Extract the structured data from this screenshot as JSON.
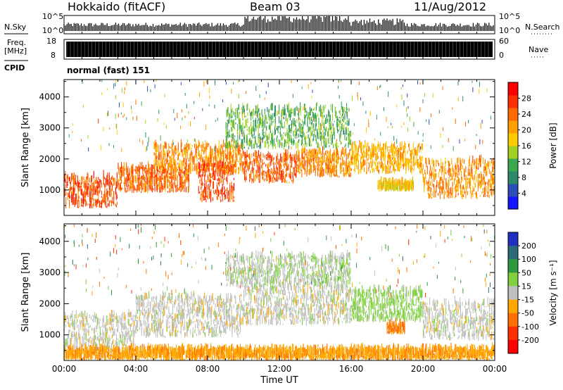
{
  "header": {
    "title": "Hokkaido (fitACF)",
    "beam": "Beam 03",
    "date": "11/Aug/2012"
  },
  "top_panels": {
    "nsky_label": "N.Sky",
    "nsearch_label": "N.Search",
    "noise_ticks": [
      "10^5",
      "10^0"
    ],
    "freq_label": "Freq.",
    "freq_unit": "[MHz]",
    "freq_ticks": [
      "18",
      "8"
    ],
    "nave_label": "Nave",
    "nave_ticks": [
      "60",
      "0"
    ],
    "cpid_label": "CPID",
    "cpid_value": "normal (fast) 151"
  },
  "chart_data": [
    {
      "type": "heatmap",
      "title": "",
      "xlabel": "Time UT",
      "ylabel": "Slant Range [km]",
      "x_tick_labels": [
        "00:00",
        "04:00",
        "08:00",
        "12:00",
        "16:00",
        "20:00",
        "00:00"
      ],
      "x_ticks_hours": [
        0,
        4,
        8,
        12,
        16,
        20,
        24
      ],
      "xlim_hours": [
        0,
        24
      ],
      "y_ticks": [
        1000,
        2000,
        3000,
        4000
      ],
      "ylim": [
        180,
        4560
      ],
      "colorbar": {
        "label": "Power [dB]",
        "ticks": [
          4,
          8,
          12,
          16,
          20,
          24,
          28
        ],
        "range": [
          0,
          32
        ],
        "colors": [
          "#1414ff",
          "#2d4fb5",
          "#2c8a6a",
          "#3aa84f",
          "#a0d020",
          "#ffcc00",
          "#ffa000",
          "#ff6a00",
          "#ff3000",
          "#ff0000"
        ]
      },
      "echo_bands": [
        {
          "hours": [
            0,
            3
          ],
          "range_km": [
            400,
            1400
          ],
          "power_db": 26
        },
        {
          "hours": [
            3,
            7
          ],
          "range_km": [
            900,
            1700
          ],
          "power_db": 24
        },
        {
          "hours": [
            5,
            10
          ],
          "range_km": [
            1500,
            2400
          ],
          "power_db": 22
        },
        {
          "hours": [
            7.5,
            9.5
          ],
          "range_km": [
            600,
            1800
          ],
          "power_db": 26
        },
        {
          "hours": [
            10,
            13
          ],
          "range_km": [
            1200,
            2100
          ],
          "power_db": 25
        },
        {
          "hours": [
            13,
            16
          ],
          "range_km": [
            1400,
            2200
          ],
          "power_db": 22
        },
        {
          "hours": [
            16,
            20
          ],
          "range_km": [
            1500,
            2400
          ],
          "power_db": 20
        },
        {
          "hours": [
            17.5,
            19.5
          ],
          "range_km": [
            950,
            1200
          ],
          "power_db": 18
        },
        {
          "hours": [
            20,
            24
          ],
          "range_km": [
            700,
            1900
          ],
          "power_db": 22
        },
        {
          "hours": [
            9,
            16
          ],
          "range_km": [
            2300,
            3600
          ],
          "power_db": 12
        }
      ]
    },
    {
      "type": "heatmap",
      "title": "",
      "xlabel": "Time UT",
      "ylabel": "Slant Range [km]",
      "x_tick_labels": [
        "00:00",
        "04:00",
        "08:00",
        "12:00",
        "16:00",
        "20:00",
        "00:00"
      ],
      "x_ticks_hours": [
        0,
        4,
        8,
        12,
        16,
        20,
        24
      ],
      "xlim_hours": [
        0,
        24
      ],
      "y_ticks": [
        1000,
        2000,
        3000,
        4000
      ],
      "ylim": [
        180,
        4560
      ],
      "colorbar": {
        "label": "Velocity [m s⁻¹]",
        "tick_labels": [
          "200",
          "100",
          "50",
          "15",
          "-15",
          "-50",
          "-100",
          "-200"
        ],
        "colors": [
          "#2030c0",
          "#2a6a7a",
          "#2c9a40",
          "#80d040",
          "#c0c0c0",
          "#ffa800",
          "#ff7000",
          "#ff3000",
          "#ff0000"
        ]
      },
      "echo_bands": [
        {
          "hours": [
            0,
            4
          ],
          "range_km": [
            400,
            1600
          ],
          "velocity": 0
        },
        {
          "hours": [
            4,
            10
          ],
          "range_km": [
            900,
            2200
          ],
          "velocity": 0
        },
        {
          "hours": [
            10,
            16
          ],
          "range_km": [
            1300,
            2500
          ],
          "velocity": 0
        },
        {
          "hours": [
            16,
            20
          ],
          "range_km": [
            1400,
            2400
          ],
          "velocity": 30
        },
        {
          "hours": [
            18,
            19
          ],
          "range_km": [
            1000,
            1300
          ],
          "velocity": -60
        },
        {
          "hours": [
            20,
            24
          ],
          "range_km": [
            800,
            2000
          ],
          "velocity": 0
        },
        {
          "hours": [
            0,
            24
          ],
          "range_km": [
            180,
            500
          ],
          "velocity": -40
        },
        {
          "hours": [
            9,
            16
          ],
          "range_km": [
            2500,
            3500
          ],
          "velocity": 10
        }
      ]
    }
  ]
}
